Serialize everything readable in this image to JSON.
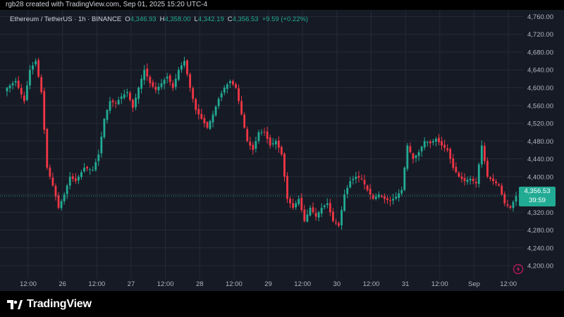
{
  "header": {
    "credit": "rgb28 created with TradingView.com, Sep 01, 2025 15:20 UTC-4"
  },
  "legend": {
    "symbol": "Ethereum / TetherUS · 1h · BINANCE",
    "open_label": "O",
    "open": "4,346.93",
    "high_label": "H",
    "high": "4,358.00",
    "low_label": "L",
    "low": "4,342.19",
    "close_label": "C",
    "close": "4,356.53",
    "change": "+9.59 (+0.22%)"
  },
  "price_tag": {
    "price": "4,356.53",
    "countdown": "39:59"
  },
  "footer": {
    "brand": "TradingView"
  },
  "colors": {
    "background": "#161a25",
    "grid": "#252a36",
    "axis_text": "#b2b5be",
    "up": "#22ab94",
    "down": "#f23645",
    "last_price_line": "#22ab94",
    "bolt": "#c2185b"
  },
  "chart_data": {
    "type": "candlestick",
    "title": "Ethereum / TetherUS · 1h · BINANCE",
    "x_tick_labels": [
      "12:00",
      "26",
      "12:00",
      "27",
      "12:00",
      "28",
      "12:00",
      "29",
      "12:00",
      "30",
      "12:00",
      "31",
      "12:00",
      "Sep",
      "12:00"
    ],
    "y_tick_labels": [
      "4,760.00",
      "4,720.00",
      "4,680.00",
      "4,640.00",
      "4,600.00",
      "4,560.00",
      "4,520.00",
      "4,480.00",
      "4,440.00",
      "4,400.00",
      "4,360.00",
      "4,320.00",
      "4,280.00",
      "4,240.00",
      "4,200.00"
    ],
    "ylim": [
      4170,
      4775
    ],
    "last_price": 4356.53,
    "grid": true,
    "close_path_points": [
      [
        0,
        4600
      ],
      [
        3,
        4615
      ],
      [
        6,
        4570
      ],
      [
        8,
        4640
      ],
      [
        10,
        4660
      ],
      [
        12,
        4590
      ],
      [
        14,
        4420
      ],
      [
        16,
        4380
      ],
      [
        18,
        4330
      ],
      [
        20,
        4360
      ],
      [
        22,
        4400
      ],
      [
        24,
        4390
      ],
      [
        27,
        4420
      ],
      [
        30,
        4415
      ],
      [
        32,
        4450
      ],
      [
        34,
        4530
      ],
      [
        36,
        4570
      ],
      [
        38,
        4565
      ],
      [
        40,
        4580
      ],
      [
        42,
        4590
      ],
      [
        44,
        4555
      ],
      [
        46,
        4600
      ],
      [
        48,
        4640
      ],
      [
        50,
        4610
      ],
      [
        52,
        4595
      ],
      [
        54,
        4610
      ],
      [
        56,
        4625
      ],
      [
        58,
        4600
      ],
      [
        60,
        4640
      ],
      [
        62,
        4660
      ],
      [
        64,
        4600
      ],
      [
        66,
        4550
      ],
      [
        68,
        4530
      ],
      [
        70,
        4510
      ],
      [
        72,
        4540
      ],
      [
        74,
        4575
      ],
      [
        76,
        4600
      ],
      [
        78,
        4615
      ],
      [
        80,
        4600
      ],
      [
        82,
        4540
      ],
      [
        84,
        4480
      ],
      [
        86,
        4460
      ],
      [
        88,
        4500
      ],
      [
        90,
        4500
      ],
      [
        92,
        4470
      ],
      [
        94,
        4480
      ],
      [
        96,
        4450
      ],
      [
        98,
        4350
      ],
      [
        100,
        4330
      ],
      [
        102,
        4350
      ],
      [
        104,
        4300
      ],
      [
        106,
        4330
      ],
      [
        108,
        4310
      ],
      [
        110,
        4330
      ],
      [
        112,
        4340
      ],
      [
        114,
        4300
      ],
      [
        116,
        4290
      ],
      [
        118,
        4360
      ],
      [
        120,
        4390
      ],
      [
        122,
        4400
      ],
      [
        124,
        4395
      ],
      [
        126,
        4370
      ],
      [
        128,
        4350
      ],
      [
        130,
        4360
      ],
      [
        132,
        4350
      ],
      [
        134,
        4345
      ],
      [
        136,
        4355
      ],
      [
        138,
        4370
      ],
      [
        140,
        4470
      ],
      [
        142,
        4440
      ],
      [
        144,
        4455
      ],
      [
        146,
        4480
      ],
      [
        148,
        4475
      ],
      [
        150,
        4485
      ],
      [
        152,
        4470
      ],
      [
        154,
        4460
      ],
      [
        156,
        4420
      ],
      [
        158,
        4400
      ],
      [
        160,
        4390
      ],
      [
        162,
        4395
      ],
      [
        164,
        4385
      ],
      [
        166,
        4470
      ],
      [
        168,
        4400
      ],
      [
        170,
        4390
      ],
      [
        172,
        4380
      ],
      [
        174,
        4340
      ],
      [
        176,
        4330
      ],
      [
        178,
        4356.53
      ]
    ]
  }
}
